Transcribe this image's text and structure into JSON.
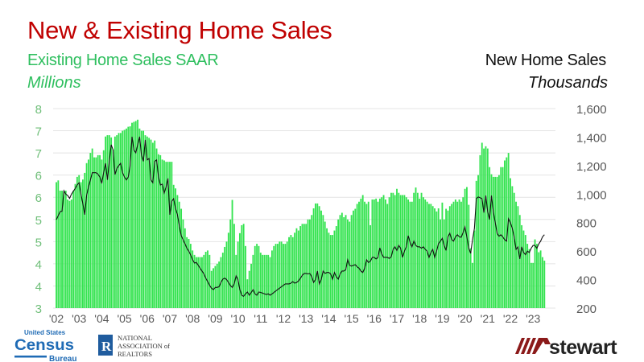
{
  "header": {
    "title": "New & Existing Home Sales",
    "left_series_title": "Existing Home Sales SAAR",
    "left_unit": "Millions",
    "right_series_title": "New Home Sales",
    "right_unit": "Thousands"
  },
  "logos": {
    "census": {
      "line1": "United States",
      "line2": "Census",
      "line3": "Bureau"
    },
    "nar": {
      "line1": "NATIONAL",
      "line2": "ASSOCIATION of",
      "line3": "REALTORS",
      "badge": "R"
    },
    "stewart": {
      "text": "stewart"
    }
  },
  "colors": {
    "title": "#c00000",
    "bars": "#33e34f",
    "line": "#111111",
    "left_axis": "#70bf7a",
    "right_axis": "#595959",
    "grid": "#e4e4e4"
  },
  "chart_data": {
    "type": "bar+line",
    "title": "New & Existing Home Sales",
    "frequency": "monthly",
    "start": "2002-01",
    "end": "2023-07",
    "x_tick_labels": [
      "'02",
      "'03",
      "'04",
      "'05",
      "'06",
      "'07",
      "'08",
      "'09",
      "'10",
      "'11",
      "'12",
      "'13",
      "'14",
      "'15",
      "'16",
      "'17",
      "'18",
      "'19",
      "'20",
      "'21",
      "'22",
      "'23"
    ],
    "left_axis": {
      "label": "Existing Home Sales SAAR (Millions)",
      "range": [
        3,
        7.5
      ],
      "tick_labels": [
        "8",
        "7",
        "7",
        "6",
        "6",
        "5",
        "5",
        "4",
        "4",
        "3"
      ]
    },
    "right_axis": {
      "label": "New Home Sales (Thousands)",
      "range": [
        200,
        1600
      ],
      "tick_labels": [
        "1,600",
        "1,400",
        "1,200",
        "1,000",
        "800",
        "600",
        "400",
        "200"
      ]
    },
    "grid": true,
    "series": [
      {
        "name": "Existing Home Sales SAAR",
        "type": "bar",
        "axis": "left",
        "values": [
          5.84,
          5.88,
          5.65,
          5.65,
          5.62,
          5.65,
          5.45,
          5.42,
          5.45,
          5.65,
          5.8,
          5.96,
          6.0,
          5.84,
          5.9,
          6.05,
          6.27,
          6.35,
          6.5,
          6.6,
          6.4,
          6.4,
          6.45,
          6.45,
          6.35,
          6.56,
          6.87,
          6.9,
          6.9,
          6.85,
          6.58,
          6.87,
          6.9,
          6.95,
          6.95,
          7.0,
          7.02,
          7.05,
          7.09,
          7.1,
          7.18,
          7.2,
          7.22,
          7.25,
          7.05,
          7.0,
          7.0,
          6.9,
          6.87,
          6.84,
          6.8,
          6.73,
          6.78,
          6.6,
          6.47,
          6.45,
          6.35,
          6.33,
          6.3,
          6.3,
          6.3,
          6.3,
          5.78,
          5.7,
          5.55,
          5.4,
          5.24,
          5.0,
          4.8,
          4.6,
          4.56,
          4.45,
          4.3,
          4.2,
          4.15,
          4.15,
          4.15,
          4.15,
          4.2,
          4.27,
          4.3,
          4.2,
          3.84,
          3.9,
          3.95,
          4.0,
          4.05,
          4.15,
          4.25,
          4.38,
          4.5,
          4.7,
          5.0,
          5.44,
          4.9,
          4.2,
          4.5,
          4.69,
          4.87,
          4.9,
          4.4,
          3.65,
          3.84,
          4.0,
          4.2,
          4.4,
          4.45,
          4.4,
          4.25,
          4.2,
          4.2,
          4.2,
          4.2,
          4.15,
          4.3,
          4.4,
          4.45,
          4.45,
          4.5,
          4.5,
          4.45,
          4.45,
          4.5,
          4.6,
          4.65,
          4.6,
          4.7,
          4.8,
          4.75,
          4.85,
          4.9,
          4.9,
          4.9,
          5.0,
          5.0,
          5.1,
          5.25,
          5.36,
          5.36,
          5.3,
          5.2,
          5.1,
          4.95,
          4.8,
          4.7,
          4.65,
          4.65,
          4.75,
          4.85,
          5.0,
          5.1,
          5.15,
          5.05,
          5.1,
          5.0,
          4.95,
          5.1,
          5.2,
          5.24,
          5.35,
          5.4,
          5.47,
          5.55,
          5.4,
          5.35,
          5.4,
          4.87,
          5.45,
          5.45,
          5.47,
          5.4,
          5.47,
          5.5,
          5.55,
          5.45,
          5.35,
          5.5,
          5.6,
          5.6,
          5.55,
          5.69,
          5.6,
          5.55,
          5.55,
          5.55,
          5.5,
          5.45,
          5.4,
          5.4,
          5.6,
          5.72,
          5.6,
          5.47,
          5.6,
          5.5,
          5.45,
          5.4,
          5.35,
          5.35,
          5.3,
          5.25,
          5.18,
          5.25,
          5.0,
          5.38,
          5.0,
          5.24,
          5.2,
          5.3,
          5.35,
          5.4,
          5.45,
          5.4,
          5.45,
          5.4,
          5.5,
          5.69,
          5.73,
          5.33,
          4.35,
          4.02,
          4.75,
          5.87,
          6.0,
          6.45,
          6.73,
          6.6,
          6.65,
          6.6,
          6.18,
          6.02,
          5.96,
          5.96,
          5.96,
          6.0,
          6.18,
          6.18,
          6.33,
          6.4,
          6.5,
          5.93,
          5.75,
          5.6,
          5.4,
          5.3,
          5.1,
          4.87,
          4.75,
          4.65,
          4.45,
          4.33,
          4.02,
          4.02,
          4.55,
          4.45,
          4.26,
          4.3,
          4.15,
          4.07
        ]
      },
      {
        "name": "New Home Sales",
        "type": "line",
        "axis": "right",
        "values": [
          821,
          850,
          877,
          880,
          1024,
          1000,
          990,
          970,
          1000,
          1020,
          1040,
          1064,
          1080,
          1000,
          934,
          855,
          990,
          1050,
          1100,
          1150,
          1150,
          1150,
          1140,
          1120,
          1075,
          1150,
          1216,
          1100,
          1230,
          1346,
          1310,
          1137,
          1180,
          1200,
          1216,
          1150,
          1120,
          1100,
          1120,
          1200,
          1403,
          1310,
          1290,
          1346,
          1403,
          1273,
          1230,
          1380,
          1240,
          1250,
          1100,
          1080,
          1230,
          1240,
          1120,
          1064,
          1070,
          1008,
          1050,
          1110,
          855,
          950,
          968,
          900,
          855,
          780,
          708,
          680,
          652,
          620,
          600,
          573,
          540,
          516,
          520,
          500,
          480,
          460,
          440,
          410,
          386,
          360,
          340,
          330,
          345,
          345,
          350,
          380,
          403,
          410,
          400,
          380,
          358,
          345,
          370,
          426,
          400,
          330,
          290,
          283,
          300,
          313,
          290,
          310,
          330,
          300,
          290,
          313,
          310,
          305,
          300,
          295,
          300,
          290,
          300,
          310,
          320,
          330,
          340,
          350,
          360,
          370,
          370,
          370,
          375,
          386,
          375,
          380,
          390,
          410,
          430,
          443,
          443,
          440,
          443,
          420,
          380,
          400,
          460,
          370,
          400,
          460,
          443,
          450,
          450,
          440,
          403,
          450,
          420,
          403,
          440,
          460,
          460,
          470,
          539,
          500,
          495,
          500,
          505,
          490,
          480,
          460,
          450,
          480,
          539,
          520,
          530,
          556,
          556,
          545,
          556,
          623,
          580,
          556,
          556,
          556,
          548,
          560,
          612,
          630,
          605,
          640,
          620,
          556,
          600,
          630,
          708,
          660,
          630,
          670,
          640,
          630,
          630,
          620,
          630,
          612,
          600,
          556,
          590,
          612,
          556,
          600,
          652,
          670,
          690,
          640,
          605,
          700,
          725,
          680,
          670,
          700,
          715,
          700,
          697,
          730,
          770,
          700,
          620,
          584,
          680,
          760,
          968,
          980,
          975,
          968,
          870,
          990,
          877,
          821,
          990,
          877,
          800,
          725,
          705,
          715,
          700,
          680,
          670,
          827,
          800,
          760,
          700,
          612,
          630,
          545,
          630,
          590,
          575,
          600,
          590,
          620,
          640,
          640,
          620,
          650,
          670,
          700,
          715
        ]
      }
    ]
  }
}
